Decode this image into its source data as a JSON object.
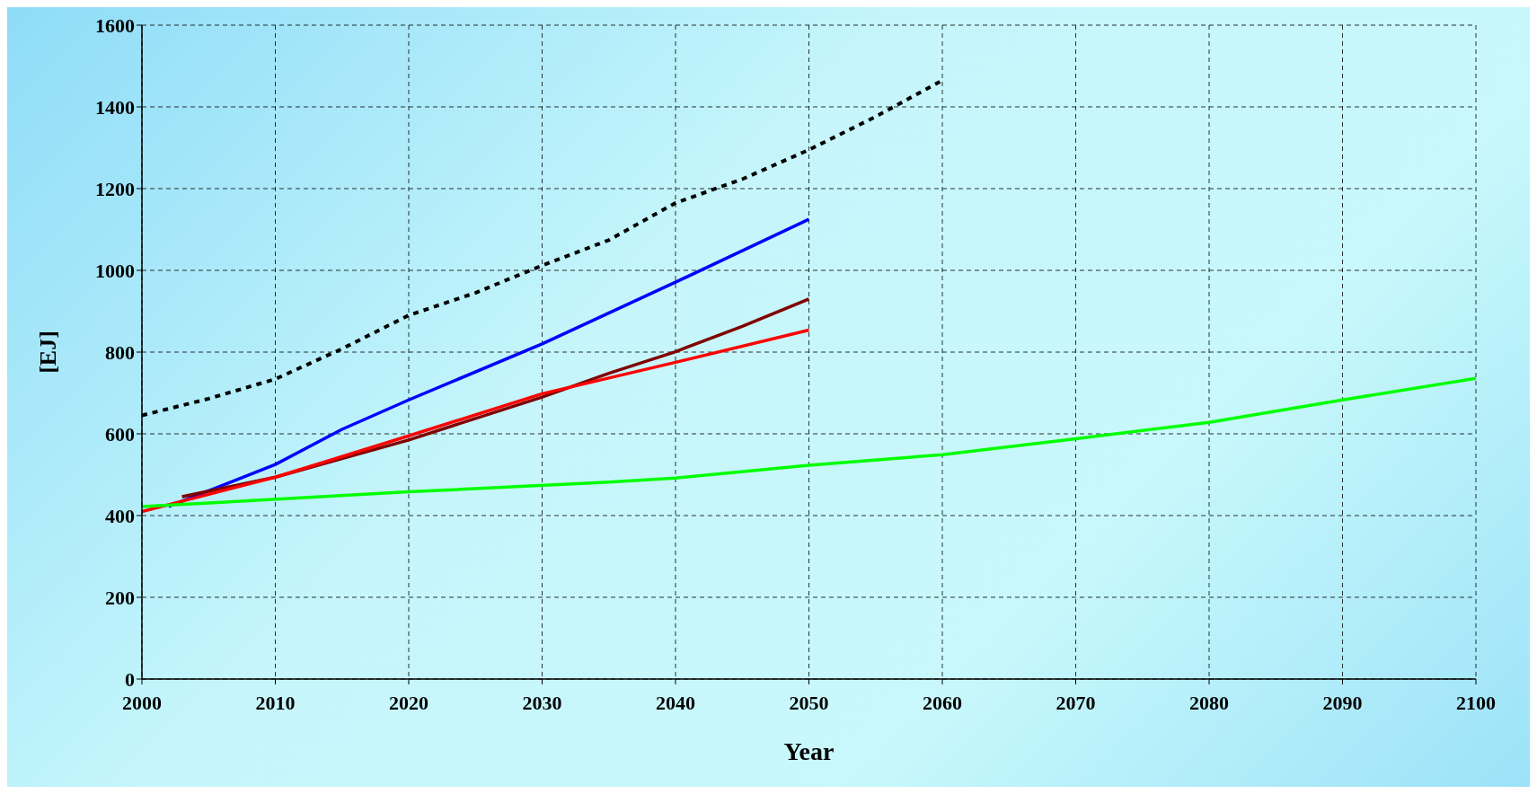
{
  "chart_data": {
    "type": "line",
    "xlabel": "Year",
    "ylabel": "[EJ]",
    "xlim": [
      2000,
      2100
    ],
    "xticks": [
      2000,
      2010,
      2020,
      2030,
      2040,
      2050,
      2060,
      2070,
      2080,
      2090,
      2100
    ],
    "ylim": [
      0,
      1600
    ],
    "yticks": [
      0,
      200,
      400,
      600,
      800,
      1000,
      1200,
      1400,
      1600
    ],
    "grid": true,
    "marker": "none",
    "series": [
      {
        "color": "#000000",
        "line_style": "dashed",
        "x": [
          2000,
          2005,
          2010,
          2015,
          2020,
          2025,
          2030,
          2035,
          2040,
          2045,
          2050,
          2055,
          2060
        ],
        "values": [
          645,
          686,
          734,
          808,
          890,
          945,
          1012,
          1074,
          1165,
          1223,
          1295,
          1376,
          1465
        ]
      },
      {
        "color": "#0000ff",
        "x": [
          2002,
          2010,
          2015,
          2020,
          2030,
          2040,
          2050
        ],
        "values": [
          422,
          525,
          611,
          683,
          820,
          971,
          1125
        ]
      },
      {
        "color": "#800000",
        "x": [
          2003,
          2010,
          2020,
          2030,
          2035,
          2040,
          2045,
          2050
        ],
        "values": [
          446,
          494,
          585,
          690,
          748,
          801,
          863,
          930
        ]
      },
      {
        "color": "#ff0000",
        "x": [
          2000,
          2010,
          2020,
          2030,
          2040,
          2050
        ],
        "values": [
          410,
          494,
          595,
          698,
          775,
          854
        ]
      },
      {
        "color": "#00ff00",
        "x": [
          2000,
          2008,
          2020,
          2035,
          2040,
          2050,
          2060,
          2070,
          2080,
          2090,
          2100
        ],
        "values": [
          422,
          436,
          458,
          482,
          492,
          523,
          549,
          588,
          628,
          683,
          736
        ]
      }
    ]
  }
}
